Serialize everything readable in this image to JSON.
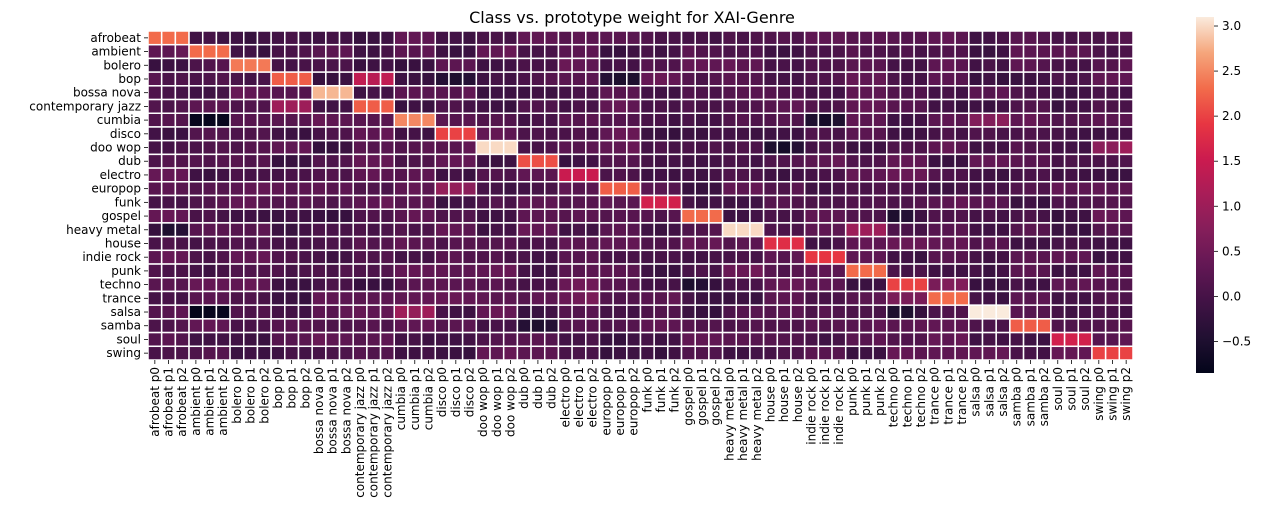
{
  "chart_data": {
    "type": "heatmap",
    "title": "Class vs. prototype weight for XAI-Genre",
    "xlabel": "",
    "ylabel": "",
    "classes": [
      "afrobeat",
      "ambient",
      "bolero",
      "bop",
      "bossa nova",
      "contemporary jazz",
      "cumbia",
      "disco",
      "doo wop",
      "dub",
      "electro",
      "europop",
      "funk",
      "gospel",
      "heavy metal",
      "house",
      "indie rock",
      "punk",
      "techno",
      "trance",
      "salsa",
      "samba",
      "soul",
      "swing"
    ],
    "prototypes_per_class": [
      "p0",
      "p1",
      "p2"
    ],
    "diagonal_values": [
      2.3,
      2.3,
      2.4,
      2.2,
      2.8,
      2.2,
      2.5,
      2.0,
      3.0,
      2.1,
      1.5,
      2.2,
      1.6,
      2.3,
      3.0,
      1.8,
      1.9,
      2.3,
      2.0,
      2.3,
      3.1,
      2.2,
      1.6,
      2.0
    ],
    "overrides": [
      {
        "row": "bop",
        "col_class": "contemporary jazz",
        "values": [
          1.4,
          1.3,
          1.4
        ]
      },
      {
        "row": "contemporary jazz",
        "col_class": "bop",
        "values": [
          1.0,
          1.0,
          1.0
        ]
      },
      {
        "row": "salsa",
        "col_class": "cumbia",
        "values": [
          1.0,
          0.9,
          1.0
        ]
      },
      {
        "row": "cumbia",
        "col_class": "salsa",
        "values": [
          0.7,
          0.7,
          0.8
        ]
      },
      {
        "row": "punk",
        "col_class": "heavy metal",
        "values": [
          0.4,
          0.4,
          0.5
        ]
      },
      {
        "row": "heavy metal",
        "col_class": "punk",
        "values": [
          1.0,
          1.0,
          1.0
        ]
      },
      {
        "row": "techno",
        "col_class": "trance",
        "values": [
          0.6,
          0.7,
          0.7
        ]
      },
      {
        "row": "trance",
        "col_class": "techno",
        "values": [
          0.6,
          0.6,
          0.6
        ]
      },
      {
        "row": "house",
        "col_class": "techno",
        "values": [
          0.4,
          0.4,
          0.4
        ]
      },
      {
        "row": "techno",
        "col_class": "electro",
        "values": [
          0.4,
          0.5,
          0.5
        ]
      },
      {
        "row": "trance",
        "col_class": "electro",
        "values": [
          0.4,
          0.5,
          0.6
        ]
      },
      {
        "row": "electro",
        "col_class": "techno",
        "values": [
          0.4,
          0.4,
          0.4
        ]
      },
      {
        "row": "indie rock",
        "col_class": "punk",
        "values": [
          0.3,
          0.3,
          0.3
        ]
      },
      {
        "row": "soul",
        "col_class": "swing",
        "values": [
          0.2,
          0.2,
          0.3
        ]
      },
      {
        "row": "doo wop",
        "col_class": "swing",
        "values": [
          0.8,
          0.8,
          1.0
        ]
      },
      {
        "row": "europop",
        "col_class": "disco",
        "values": [
          0.9,
          0.9,
          0.8
        ]
      },
      {
        "row": "disco",
        "col_class": "europop",
        "values": [
          0.3,
          0.4,
          0.4
        ]
      },
      {
        "row": "cumbia",
        "col_class": "ambient",
        "values": [
          -0.8,
          -0.8,
          -0.8
        ]
      },
      {
        "row": "salsa",
        "col_class": "ambient",
        "values": [
          -0.9,
          -0.8,
          -0.8
        ]
      },
      {
        "row": "heavy metal",
        "col_class": "afrobeat",
        "values": [
          -0.2,
          -0.5,
          -0.4
        ]
      },
      {
        "row": "cumbia",
        "col_class": "indie rock",
        "values": [
          -0.5,
          -0.6,
          -0.5
        ]
      },
      {
        "row": "doo wop",
        "col_class": "house",
        "values": [
          -0.5,
          -0.6,
          -0.4
        ]
      },
      {
        "row": "bop",
        "col_class": "europop",
        "values": [
          -0.4,
          -0.5,
          -0.5
        ]
      },
      {
        "row": "bop",
        "col_class": "disco",
        "values": [
          -0.4,
          -0.5,
          -0.4
        ]
      },
      {
        "row": "samba",
        "col_class": "dub",
        "values": [
          -0.4,
          -0.5,
          -0.4
        ]
      },
      {
        "row": "gospel",
        "col_class": "techno",
        "values": [
          -0.5,
          -0.4,
          -0.1
        ]
      },
      {
        "row": "salsa",
        "col_class": "techno",
        "values": [
          -0.5,
          -0.5,
          -0.2
        ]
      },
      {
        "row": "techno",
        "col_class": "gospel",
        "values": [
          -0.5,
          -0.4,
          -0.2
        ]
      }
    ],
    "default_offdiag": 0.1,
    "colorbar": {
      "min": -0.85,
      "max": 3.1,
      "ticks": [
        -0.5,
        0.0,
        0.5,
        1.0,
        1.5,
        2.0,
        2.5,
        3.0
      ],
      "tick_labels": [
        "−0.5",
        "0.0",
        "0.5",
        "1.0",
        "1.5",
        "2.0",
        "2.5",
        "3.0"
      ],
      "colormap": "rocket"
    },
    "grid": true,
    "legend": "none"
  }
}
